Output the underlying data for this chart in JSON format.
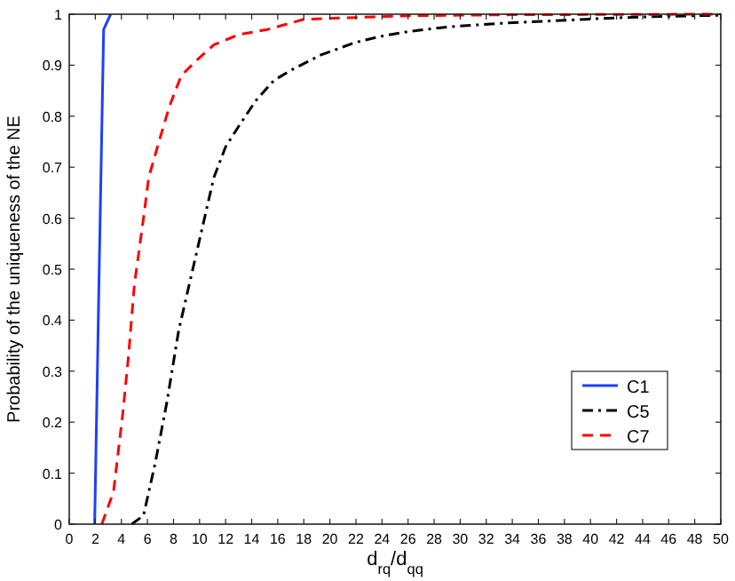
{
  "chart_data": {
    "type": "line",
    "xlabel": "d$_{rq}$/d$_{qq}$",
    "ylabel": "Probability of the uniqueness of the NE",
    "xlim": [
      0,
      50
    ],
    "xticks": [
      0,
      2,
      4,
      6,
      8,
      10,
      12,
      14,
      16,
      18,
      20,
      22,
      24,
      26,
      28,
      30,
      32,
      34,
      36,
      38,
      40,
      42,
      44,
      46,
      48,
      50
    ],
    "ylim": [
      0,
      1
    ],
    "yticks": [
      0,
      0.1,
      0.2,
      0.3,
      0.4,
      0.5,
      0.6,
      0.7,
      0.8,
      0.9,
      1
    ],
    "grid": false,
    "legend": "bottom right",
    "marker": "none",
    "series": [
      {
        "name": "C1",
        "color": "#1f3fff",
        "line_style": "solid",
        "x": [
          1.95,
          2.3,
          2.64,
          3.18
        ],
        "values": [
          0,
          0.5,
          0.97,
          1
        ]
      },
      {
        "name": "C5",
        "color": "#000000",
        "line_style": "dashdot",
        "x": [
          4.8,
          5.7,
          6.6,
          7.5,
          8.4,
          9.3,
          10.2,
          11.1,
          12,
          13,
          14.3,
          15.7,
          17,
          19.3,
          22,
          24,
          26,
          29,
          33,
          37,
          42,
          46,
          50
        ],
        "values": [
          0,
          0.017,
          0.12,
          0.24,
          0.38,
          0.48,
          0.58,
          0.68,
          0.74,
          0.78,
          0.83,
          0.87,
          0.89,
          0.92,
          0.945,
          0.957,
          0.966,
          0.975,
          0.982,
          0.987,
          0.993,
          0.996,
          0.998
        ]
      },
      {
        "name": "C7",
        "color": "#ff0000",
        "line_style": "dashed",
        "x": [
          2.5,
          3.4,
          4.1,
          4.55,
          5,
          5.7,
          6.1,
          7,
          7.7,
          8.6,
          9.8,
          11.1,
          13,
          15.2,
          18,
          22.5,
          26,
          34,
          50
        ],
        "values": [
          0,
          0.064,
          0.215,
          0.33,
          0.47,
          0.6,
          0.68,
          0.76,
          0.82,
          0.88,
          0.91,
          0.94,
          0.96,
          0.97,
          0.99,
          0.994,
          0.997,
          0.999,
          1
        ]
      }
    ]
  }
}
